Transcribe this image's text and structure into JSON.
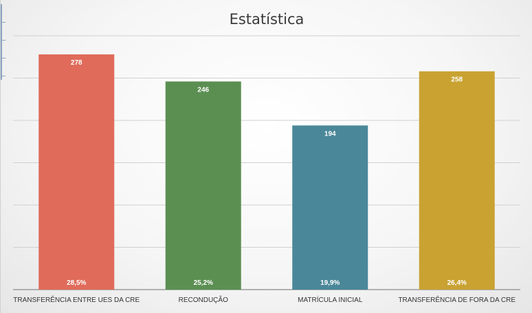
{
  "chart_data": {
    "type": "bar",
    "title": "Estatística",
    "xlabel": "",
    "ylabel": "",
    "ylim": [
      0,
      300
    ],
    "grid": true,
    "legend": "none",
    "categories": [
      "TRANSFERÊNCIA ENTRE UES DA CRE",
      "RECONDUÇÃO",
      "MATRÍCULA INICIAL",
      "TRANSFERÊNCIA DE FORA DA CRE"
    ],
    "values": [
      278,
      246,
      194,
      258
    ],
    "percent_labels": [
      "28,5%",
      "25,2%",
      "19,9%",
      "26,4%"
    ],
    "colors": [
      "#E06B5A",
      "#5B8F52",
      "#4A8799",
      "#C9A232"
    ]
  }
}
